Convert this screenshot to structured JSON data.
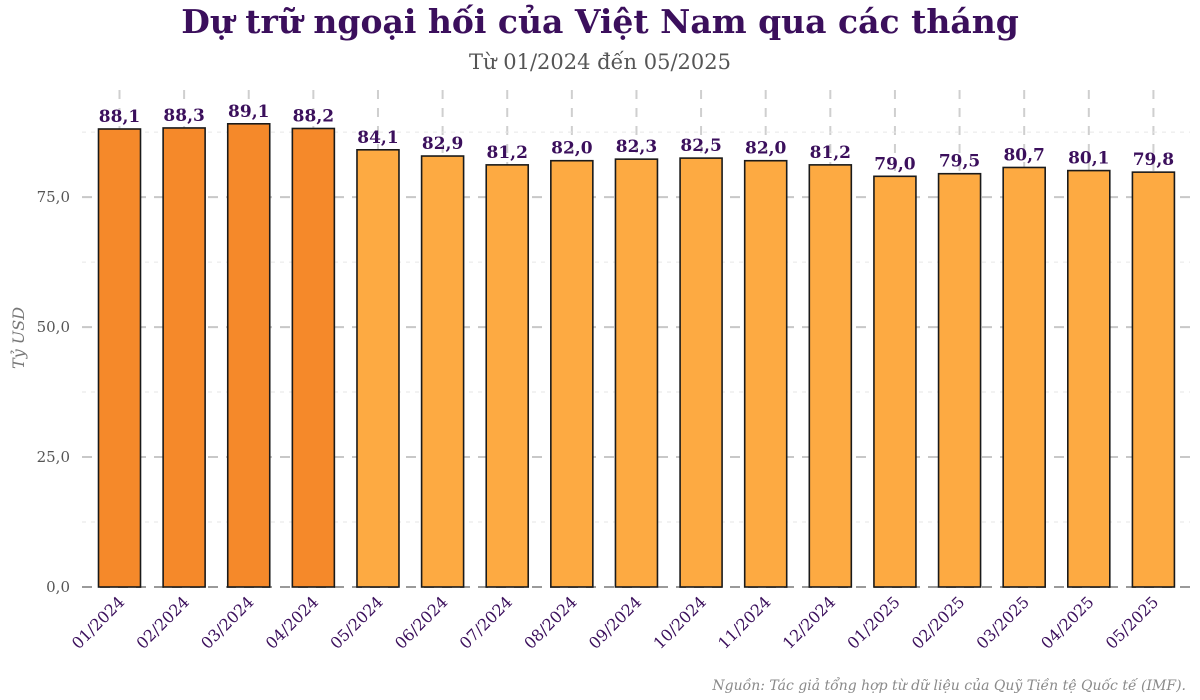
{
  "chart_data": {
    "type": "bar",
    "title": "Dự trữ ngoại hối của Việt Nam qua các tháng",
    "subtitle": "Từ 01/2024 đến 05/2025",
    "ylabel": "Tỷ USD",
    "xlabel": "",
    "source": "Nguồn: Tác giả tổng hợp từ dữ liệu của Quỹ Tiền tệ Quốc tế (IMF).",
    "categories": [
      "01/2024",
      "02/2024",
      "03/2024",
      "04/2024",
      "05/2024",
      "06/2024",
      "07/2024",
      "08/2024",
      "09/2024",
      "10/2024",
      "11/2024",
      "12/2024",
      "01/2025",
      "02/2025",
      "03/2025",
      "04/2025",
      "05/2025"
    ],
    "values": [
      88.1,
      88.3,
      89.1,
      88.2,
      84.1,
      82.9,
      81.2,
      82.0,
      82.3,
      82.5,
      82.0,
      81.2,
      79.0,
      79.5,
      80.7,
      80.1,
      79.8
    ],
    "value_labels": [
      "88,1",
      "88,3",
      "89,1",
      "88,2",
      "84,1",
      "82,9",
      "81,2",
      "82,0",
      "82,3",
      "82,5",
      "82,0",
      "81,2",
      "79,0",
      "79,5",
      "80,7",
      "80,1",
      "79,8"
    ],
    "yticks": [
      0,
      25,
      50,
      75
    ],
    "ytick_labels": [
      "0,0",
      "25,0",
      "50,0",
      "75,0"
    ],
    "ylim": [
      0,
      92
    ],
    "grid": true,
    "colors": {
      "bar_q1_2024": "#f5892a",
      "bar_other": "#fdaa42",
      "bar_outline": "#1a1a1a",
      "text_accent": "#3b0f5c"
    },
    "highlighted_count": 4
  }
}
